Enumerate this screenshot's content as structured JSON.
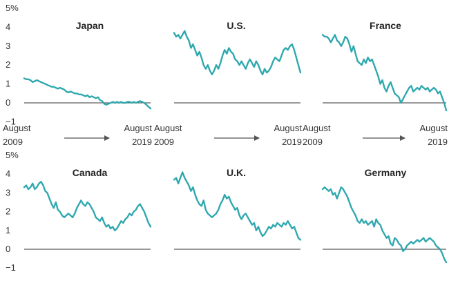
{
  "chart_data": {
    "type": "line",
    "layout": "small-multiples 3x2",
    "y_tick_labels": [
      "5%",
      "4",
      "3",
      "2",
      "1",
      "0",
      "−1"
    ],
    "ylim": [
      -1,
      5
    ],
    "x_start_label": [
      "August",
      "2009"
    ],
    "x_end_label": [
      "August",
      "2019"
    ],
    "line_color": "#2fa8ae",
    "panels": [
      {
        "title": "Japan",
        "values": [
          1.3,
          1.25,
          1.25,
          1.2,
          1.1,
          1.15,
          1.2,
          1.15,
          1.1,
          1.05,
          1.0,
          0.95,
          0.9,
          0.85,
          0.85,
          0.8,
          0.75,
          0.8,
          0.75,
          0.7,
          0.6,
          0.55,
          0.6,
          0.55,
          0.5,
          0.5,
          0.45,
          0.45,
          0.4,
          0.35,
          0.4,
          0.3,
          0.35,
          0.3,
          0.25,
          0.3,
          0.15,
          0.1,
          -0.05,
          -0.1,
          -0.05,
          0.0,
          0.05,
          0.0,
          0.05,
          0.0,
          0.05,
          0.0,
          0.0,
          0.05,
          0.05,
          0.0,
          0.05,
          0.0,
          0.05,
          0.1,
          0.05,
          0.0,
          -0.1,
          -0.2,
          -0.3
        ]
      },
      {
        "title": "U.S.",
        "values": [
          3.7,
          3.5,
          3.6,
          3.4,
          3.6,
          3.8,
          3.5,
          3.3,
          2.9,
          3.1,
          2.8,
          2.5,
          2.7,
          2.4,
          2.0,
          1.8,
          2.0,
          1.7,
          1.5,
          1.7,
          2.0,
          1.8,
          2.1,
          2.5,
          2.8,
          2.6,
          2.9,
          2.7,
          2.6,
          2.3,
          2.2,
          2.0,
          2.2,
          2.0,
          1.8,
          2.1,
          2.3,
          2.1,
          1.9,
          2.2,
          2.0,
          1.7,
          1.5,
          1.8,
          1.6,
          1.7,
          1.9,
          2.2,
          2.4,
          2.3,
          2.2,
          2.5,
          2.8,
          2.9,
          2.8,
          3.0,
          3.1,
          2.8,
          2.4,
          2.0,
          1.6
        ]
      },
      {
        "title": "France",
        "values": [
          3.6,
          3.5,
          3.5,
          3.4,
          3.2,
          3.4,
          3.6,
          3.3,
          3.2,
          3.0,
          3.2,
          3.5,
          3.4,
          3.1,
          2.7,
          3.0,
          2.6,
          2.2,
          2.1,
          2.0,
          2.3,
          2.1,
          2.4,
          2.2,
          2.3,
          2.0,
          1.7,
          1.4,
          1.0,
          1.2,
          0.8,
          0.6,
          0.9,
          1.1,
          0.8,
          0.5,
          0.4,
          0.3,
          0.0,
          0.2,
          0.4,
          0.6,
          0.8,
          0.9,
          0.6,
          0.7,
          0.8,
          0.7,
          0.9,
          0.8,
          0.7,
          0.8,
          0.6,
          0.7,
          0.8,
          0.7,
          0.5,
          0.6,
          0.3,
          0.0,
          -0.4
        ]
      },
      {
        "title": "Canada",
        "values": [
          3.3,
          3.4,
          3.2,
          3.3,
          3.5,
          3.2,
          3.3,
          3.5,
          3.6,
          3.4,
          3.1,
          3.0,
          2.7,
          2.4,
          2.2,
          2.5,
          2.1,
          2.0,
          1.8,
          1.7,
          1.8,
          1.9,
          1.8,
          1.7,
          1.9,
          2.2,
          2.4,
          2.6,
          2.4,
          2.3,
          2.5,
          2.4,
          2.2,
          2.0,
          1.7,
          1.6,
          1.5,
          1.7,
          1.4,
          1.2,
          1.3,
          1.1,
          1.2,
          1.0,
          1.1,
          1.3,
          1.5,
          1.4,
          1.6,
          1.7,
          1.9,
          1.8,
          2.0,
          2.1,
          2.3,
          2.4,
          2.2,
          2.0,
          1.7,
          1.4,
          1.2
        ]
      },
      {
        "title": "U.K.",
        "values": [
          3.7,
          3.8,
          3.5,
          3.8,
          4.1,
          3.8,
          3.6,
          3.4,
          3.1,
          3.3,
          2.9,
          2.6,
          2.4,
          2.3,
          2.6,
          2.1,
          1.9,
          1.8,
          1.7,
          1.8,
          1.9,
          2.1,
          2.4,
          2.6,
          2.9,
          2.7,
          2.8,
          2.5,
          2.3,
          2.1,
          2.2,
          1.8,
          1.6,
          1.8,
          1.9,
          1.7,
          1.5,
          1.3,
          1.4,
          1.0,
          1.2,
          0.9,
          0.7,
          0.8,
          1.0,
          1.2,
          1.1,
          1.3,
          1.2,
          1.4,
          1.3,
          1.2,
          1.4,
          1.3,
          1.5,
          1.3,
          1.1,
          1.2,
          0.9,
          0.6,
          0.5
        ]
      },
      {
        "title": "Germany",
        "values": [
          3.2,
          3.3,
          3.2,
          3.1,
          3.2,
          2.9,
          3.0,
          2.7,
          3.0,
          3.3,
          3.2,
          3.0,
          2.8,
          2.5,
          2.2,
          2.0,
          1.8,
          1.5,
          1.4,
          1.6,
          1.4,
          1.5,
          1.3,
          1.4,
          1.5,
          1.2,
          1.6,
          1.4,
          1.3,
          1.0,
          0.8,
          0.6,
          0.7,
          0.3,
          0.2,
          0.6,
          0.5,
          0.3,
          0.2,
          -0.1,
          0.0,
          0.2,
          0.3,
          0.4,
          0.3,
          0.4,
          0.5,
          0.4,
          0.5,
          0.6,
          0.4,
          0.5,
          0.6,
          0.5,
          0.4,
          0.2,
          0.1,
          0.0,
          -0.2,
          -0.5,
          -0.7
        ]
      }
    ]
  }
}
